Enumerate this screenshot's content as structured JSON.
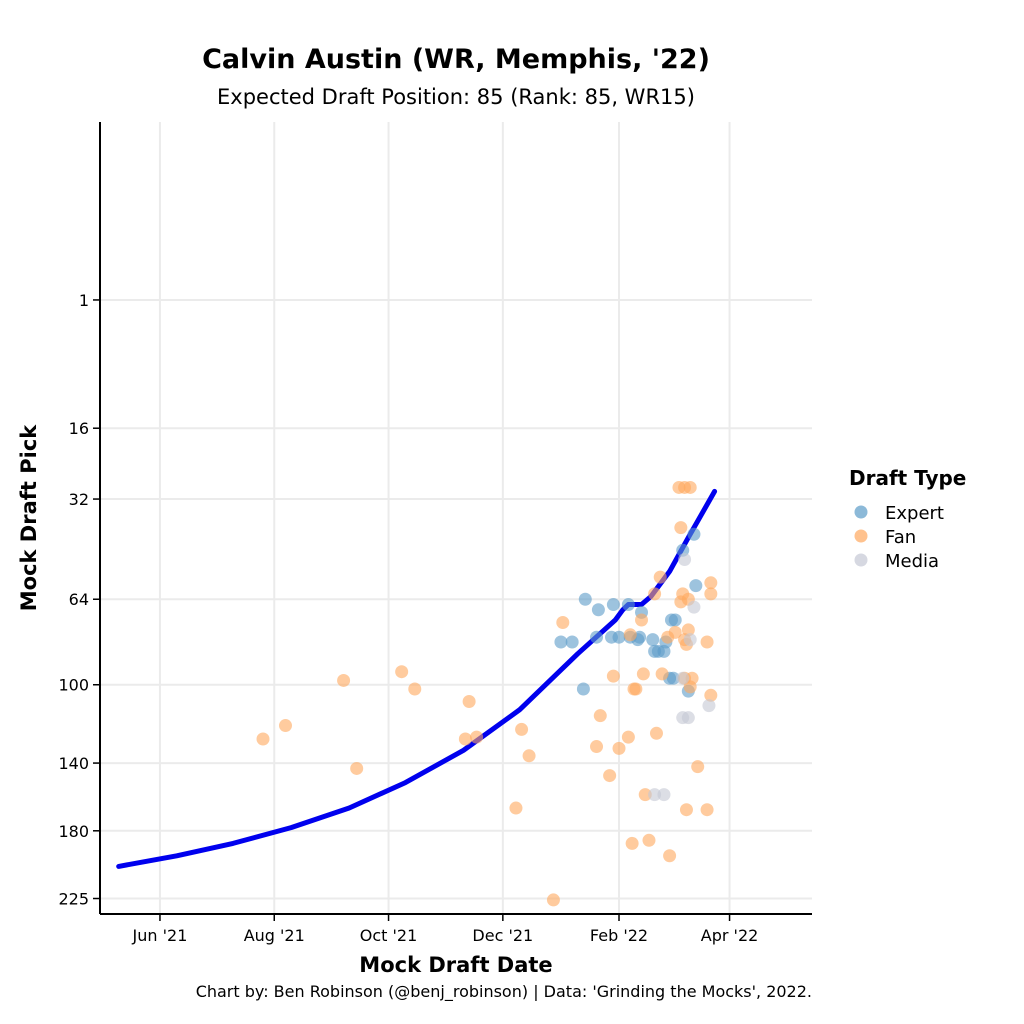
{
  "chart_data": {
    "type": "scatter",
    "title": "Calvin Austin (WR, Memphis, '22)",
    "subtitle": "Expected Draft Position: 85 (Rank: 85, WR15)",
    "xlabel": "Mock Draft Date",
    "ylabel": "Mock Draft Pick",
    "caption": "Chart by: Ben Robinson (@benj_robinson) | Data: 'Grinding the Mocks', 2022.",
    "x_ticks": [
      {
        "date": "2021-06-01",
        "label": "Jun '21"
      },
      {
        "date": "2021-08-01",
        "label": "Aug '21"
      },
      {
        "date": "2021-10-01",
        "label": "Oct '21"
      },
      {
        "date": "2021-12-01",
        "label": "Dec '21"
      },
      {
        "date": "2022-02-01",
        "label": "Feb '22"
      },
      {
        "date": "2022-04-01",
        "label": "Apr '22"
      }
    ],
    "y_ticks": [
      1,
      16,
      32,
      64,
      100,
      140,
      180,
      225
    ],
    "y_scale": "reversed sqrt",
    "xlim": [
      "2021-04-30",
      "2022-05-15"
    ],
    "ylim": [
      236,
      -10
    ],
    "grid": true,
    "legend": {
      "title": "Draft Type",
      "placement": "right",
      "entries": [
        {
          "name": "Expert",
          "color": "#5b9bc8"
        },
        {
          "name": "Fan",
          "color": "#ffa85e"
        },
        {
          "name": "Media",
          "color": "#c4c8d4"
        }
      ]
    },
    "series": [
      {
        "name": "Expert",
        "color": "#5b9bc8",
        "points": [
          [
            "2022-01-01",
            81
          ],
          [
            "2022-01-07",
            81
          ],
          [
            "2022-01-13",
            102
          ],
          [
            "2022-01-14",
            64
          ],
          [
            "2022-01-20",
            79
          ],
          [
            "2022-01-21",
            68
          ],
          [
            "2022-01-28",
            79
          ],
          [
            "2022-01-29",
            66
          ],
          [
            "2022-02-01",
            79
          ],
          [
            "2022-02-06",
            66
          ],
          [
            "2022-02-07",
            79
          ],
          [
            "2022-02-11",
            80
          ],
          [
            "2022-02-12",
            79
          ],
          [
            "2022-02-13",
            69
          ],
          [
            "2022-02-19",
            80
          ],
          [
            "2022-02-20",
            85
          ],
          [
            "2022-02-22",
            85
          ],
          [
            "2022-02-25",
            85
          ],
          [
            "2022-02-26",
            81
          ],
          [
            "2022-02-28",
            97
          ],
          [
            "2022-03-01",
            72
          ],
          [
            "2022-03-02",
            97
          ],
          [
            "2022-03-03",
            72
          ],
          [
            "2022-03-07",
            47
          ],
          [
            "2022-03-10",
            103
          ],
          [
            "2022-03-13",
            42
          ],
          [
            "2022-03-14",
            59
          ]
        ]
      },
      {
        "name": "Fan",
        "color": "#ffa85e",
        "points": [
          [
            "2021-07-26",
            127
          ],
          [
            "2021-08-07",
            120
          ],
          [
            "2021-09-07",
            98
          ],
          [
            "2021-09-14",
            143
          ],
          [
            "2021-10-08",
            94
          ],
          [
            "2021-10-15",
            102
          ],
          [
            "2021-11-11",
            127
          ],
          [
            "2021-11-13",
            108
          ],
          [
            "2021-11-17",
            126
          ],
          [
            "2021-12-08",
            166
          ],
          [
            "2021-12-11",
            122
          ],
          [
            "2021-12-15",
            136
          ],
          [
            "2021-12-28",
            226
          ],
          [
            "2022-01-02",
            73
          ],
          [
            "2022-01-20",
            131
          ],
          [
            "2022-01-22",
            115
          ],
          [
            "2022-01-27",
            147
          ],
          [
            "2022-01-29",
            96
          ],
          [
            "2022-02-01",
            132
          ],
          [
            "2022-02-06",
            126
          ],
          [
            "2022-02-07",
            78
          ],
          [
            "2022-02-08",
            188
          ],
          [
            "2022-02-09",
            102
          ],
          [
            "2022-02-10",
            102
          ],
          [
            "2022-02-13",
            72
          ],
          [
            "2022-02-14",
            95
          ],
          [
            "2022-02-15",
            158
          ],
          [
            "2022-02-17",
            186
          ],
          [
            "2022-02-20",
            62
          ],
          [
            "2022-02-21",
            124
          ],
          [
            "2022-02-23",
            56
          ],
          [
            "2022-02-24",
            95
          ],
          [
            "2022-02-27",
            79
          ],
          [
            "2022-02-28",
            196
          ],
          [
            "2022-03-03",
            77
          ],
          [
            "2022-03-05",
            29
          ],
          [
            "2022-03-06",
            40
          ],
          [
            "2022-03-06",
            65
          ],
          [
            "2022-03-07",
            62
          ],
          [
            "2022-03-08",
            29
          ],
          [
            "2022-03-08",
            80
          ],
          [
            "2022-03-08",
            97
          ],
          [
            "2022-03-09",
            167
          ],
          [
            "2022-03-09",
            82
          ],
          [
            "2022-03-10",
            76
          ],
          [
            "2022-03-10",
            64
          ],
          [
            "2022-03-11",
            29
          ],
          [
            "2022-03-11",
            101
          ],
          [
            "2022-03-12",
            97
          ],
          [
            "2022-03-15",
            142
          ],
          [
            "2022-03-20",
            81
          ],
          [
            "2022-03-20",
            167
          ],
          [
            "2022-03-22",
            62
          ],
          [
            "2022-03-22",
            58
          ],
          [
            "2022-03-22",
            105
          ]
        ]
      },
      {
        "name": "Media",
        "color": "#c4c8d4",
        "points": [
          [
            "2022-02-20",
            158
          ],
          [
            "2022-02-25",
            158
          ],
          [
            "2022-03-07",
            97
          ],
          [
            "2022-03-07",
            116
          ],
          [
            "2022-03-08",
            50
          ],
          [
            "2022-03-10",
            116
          ],
          [
            "2022-03-11",
            80
          ],
          [
            "2022-03-13",
            67
          ],
          [
            "2022-03-21",
            110
          ]
        ]
      }
    ],
    "trend": {
      "color": "#0000ee",
      "points": [
        [
          "2021-05-10",
          203
        ],
        [
          "2021-06-10",
          196
        ],
        [
          "2021-07-10",
          188
        ],
        [
          "2021-08-10",
          178
        ],
        [
          "2021-09-10",
          166
        ],
        [
          "2021-10-10",
          151
        ],
        [
          "2021-11-10",
          133
        ],
        [
          "2021-12-10",
          112
        ],
        [
          "2022-01-10",
          86
        ],
        [
          "2022-01-30",
          72
        ],
        [
          "2022-02-03",
          68
        ],
        [
          "2022-02-06",
          66
        ],
        [
          "2022-02-13",
          66
        ],
        [
          "2022-02-18",
          63
        ],
        [
          "2022-02-28",
          54
        ],
        [
          "2022-03-10",
          43
        ],
        [
          "2022-03-24",
          30
        ]
      ]
    }
  }
}
